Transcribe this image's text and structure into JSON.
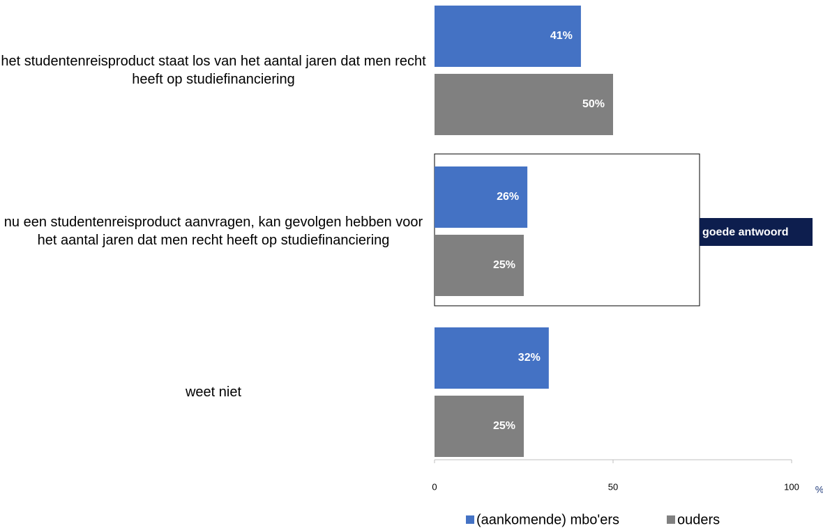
{
  "chart_data": {
    "type": "bar",
    "orientation": "horizontal",
    "categories": [
      "het studentenreisproduct staat los van het aantal jaren dat men recht heeft op studiefinanciering",
      "nu een studentenreisproduct aanvragen, kan gevolgen hebben voor het aantal jaren dat men recht heeft op studiefinanciering",
      "weet niet"
    ],
    "series": [
      {
        "name": "(aankomende) mbo'ers",
        "color": "#4472c4",
        "values": [
          41,
          26,
          32
        ],
        "value_labels": [
          "41%",
          "26%",
          "32%"
        ]
      },
      {
        "name": "ouders",
        "color": "#808080",
        "values": [
          50,
          25,
          25
        ],
        "value_labels": [
          "50%",
          "25%",
          "25%"
        ]
      }
    ],
    "xlim": [
      0,
      100
    ],
    "xticks": [
      0,
      50,
      100
    ],
    "xlabel": "%",
    "annotation": "goede antwoord",
    "annotation_category": 1,
    "legend": "bottom"
  }
}
